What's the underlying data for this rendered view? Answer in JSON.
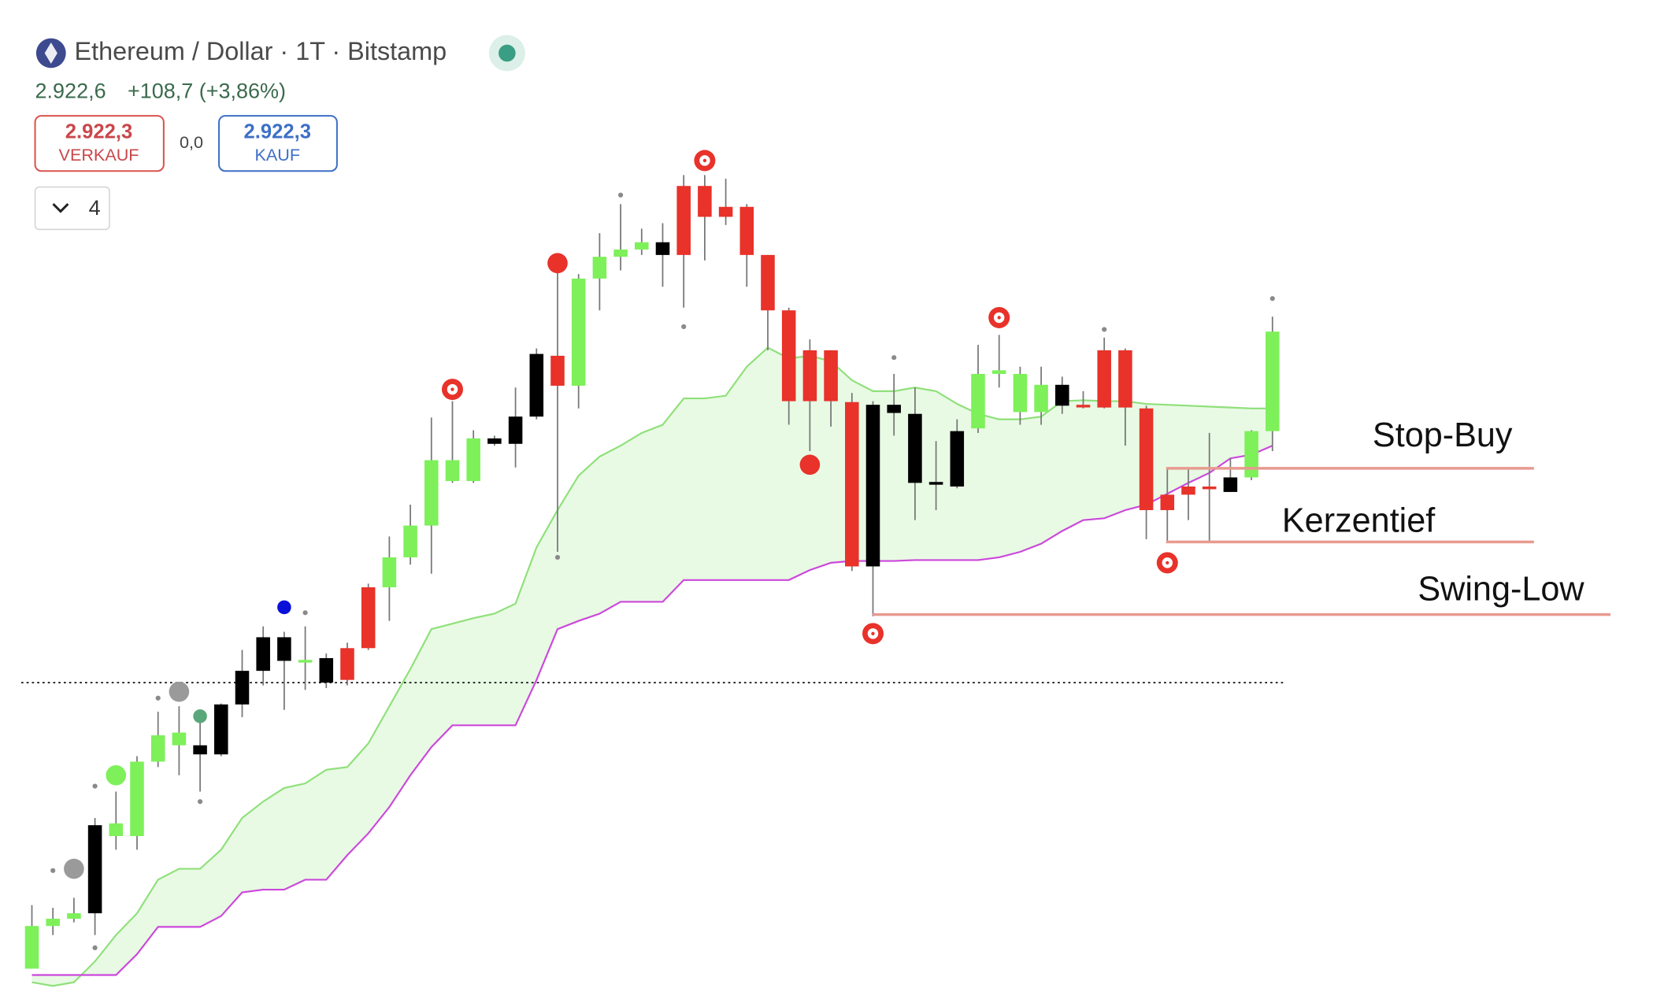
{
  "header": {
    "symbol": "Ethereum / Dollar · 1T · Bitstamp",
    "price": "2.922,6",
    "change": "+108,7 (+3,86%)",
    "sell_price": "2.922,3",
    "sell_label": "VERKAUF",
    "spread": "0,0",
    "buy_price": "2.922,3",
    "buy_label": "KAUF",
    "indicator_count": 4
  },
  "chart_data": {
    "type": "candlestick",
    "ylim": [
      2188,
      3124
    ],
    "open": [
      2221,
      2268,
      2276,
      2282,
      2367,
      2367,
      2449,
      2467,
      2467,
      2457,
      2512,
      2549,
      2586,
      2559,
      2563,
      2574,
      2641,
      2641,
      2674,
      2709,
      2758,
      2758,
      2799,
      2799,
      2829,
      2896,
      2863,
      2981,
      3005,
      3013,
      3021,
      3083,
      3083,
      3060,
      3060,
      3007,
      2946,
      2902,
      2902,
      2845,
      2842,
      2842,
      2832,
      2757,
      2752,
      2816,
      2876,
      2834,
      2834,
      2864,
      2842,
      2902,
      2902,
      2838,
      2743,
      2752,
      2752,
      2746,
      2762,
      2813
    ],
    "high": [
      2291,
      2288,
      2299,
      2387,
      2416,
      2455,
      2504,
      2510,
      2492,
      2513,
      2572,
      2598,
      2592,
      2598,
      2568,
      2580,
      2645,
      2697,
      2732,
      2828,
      2846,
      2814,
      2808,
      2861,
      2904,
      2990,
      2986,
      3031,
      3063,
      3036,
      3042,
      3095,
      3095,
      3091,
      3063,
      3007,
      2949,
      2914,
      2902,
      2855,
      2846,
      2876,
      2861,
      2802,
      2826,
      2908,
      2919,
      2884,
      2884,
      2873,
      2857,
      2916,
      2904,
      2841,
      2773,
      2773,
      2811,
      2783,
      2814,
      2939
    ],
    "low": [
      2221,
      2258,
      2272,
      2258,
      2352,
      2352,
      2443,
      2434,
      2416,
      2455,
      2498,
      2533,
      2506,
      2528,
      2530,
      2533,
      2572,
      2604,
      2666,
      2656,
      2756,
      2756,
      2797,
      2773,
      2826,
      2680,
      2838,
      2946,
      2990,
      3007,
      2972,
      2949,
      3001,
      3040,
      2972,
      2902,
      2820,
      2791,
      2818,
      2659,
      2609,
      2808,
      2715,
      2726,
      2750,
      2811,
      2861,
      2820,
      2820,
      2832,
      2838,
      2838,
      2797,
      2694,
      2691,
      2715,
      2691,
      2746,
      2759,
      2791
    ],
    "close": [
      2268,
      2276,
      2282,
      2379,
      2381,
      2449,
      2478,
      2481,
      2457,
      2512,
      2549,
      2586,
      2560,
      2561,
      2536,
      2539,
      2574,
      2674,
      2709,
      2781,
      2781,
      2805,
      2805,
      2829,
      2898,
      2863,
      2981,
      3005,
      3013,
      3021,
      3007,
      3007,
      3049,
      3049,
      3007,
      2946,
      2846,
      2846,
      2846,
      2664,
      2664,
      2833,
      2756,
      2754,
      2813,
      2876,
      2880,
      2876,
      2864,
      2841,
      2840,
      2839,
      2839,
      2726,
      2726,
      2743,
      2749,
      2762,
      2813,
      2922.6
    ],
    "colors": [
      "#7ef05a",
      "#7ef05a",
      "#7ef05a",
      "#000000",
      "#7ef05a",
      "#7ef05a",
      "#7ef05a",
      "#7ef05a",
      "#000000",
      "#000000",
      "#000000",
      "#000000",
      "#000000",
      "#7ef05a",
      "#000000",
      "#e8322a",
      "#e8322a",
      "#7ef05a",
      "#7ef05a",
      "#7ef05a",
      "#7ef05a",
      "#7ef05a",
      "#000000",
      "#000000",
      "#000000",
      "#e8322a",
      "#7ef05a",
      "#7ef05a",
      "#7ef05a",
      "#7ef05a",
      "#000000",
      "#e8322a",
      "#e8322a",
      "#e8322a",
      "#e8322a",
      "#e8322a",
      "#e8322a",
      "#e8322a",
      "#e8322a",
      "#e8322a",
      "#000000",
      "#000000",
      "#000000",
      "#000000",
      "#000000",
      "#7ef05a",
      "#7ef05a",
      "#7ef05a",
      "#7ef05a",
      "#000000",
      "#e8322a",
      "#e8322a",
      "#e8322a",
      "#e8322a",
      "#e8322a",
      "#e8322a",
      "#e8322a",
      "#000000",
      "#7ef05a",
      "#7ef05a"
    ],
    "cloud": {
      "fill": "#e6f9e1",
      "span_a": {
        "color": "#8fe07a",
        "values": [
          2206,
          2202,
          2206,
          2229,
          2258,
          2282,
          2319,
          2331,
          2331,
          2352,
          2387,
          2405,
          2420,
          2425,
          2440,
          2443,
          2469,
          2510,
          2551,
          2595,
          2601,
          2607,
          2612,
          2623,
          2685,
          2726,
          2764,
          2785,
          2797,
          2811,
          2820,
          2849,
          2849,
          2852,
          2884,
          2905,
          2893,
          2896,
          2890,
          2869,
          2857,
          2857,
          2861,
          2857,
          2843,
          2832,
          2826,
          2826,
          2829,
          2846,
          2847,
          2846,
          2846,
          2843,
          2842,
          2841,
          2840,
          2839,
          2838,
          2838
        ]
      },
      "span_b": {
        "color": "#cc47dc",
        "values": [
          2214,
          2214,
          2214,
          2214,
          2214,
          2237,
          2267,
          2267,
          2267,
          2279,
          2305,
          2308,
          2308,
          2319,
          2319,
          2346,
          2370,
          2399,
          2434,
          2465,
          2489,
          2489,
          2489,
          2489,
          2539,
          2595,
          2604,
          2612,
          2625,
          2625,
          2625,
          2649,
          2649,
          2649,
          2649,
          2649,
          2649,
          2660,
          2668,
          2670,
          2670,
          2670,
          2671,
          2671,
          2671,
          2671,
          2674,
          2680,
          2689,
          2703,
          2715,
          2717,
          2726,
          2732,
          2744,
          2756,
          2767,
          2783,
          2787,
          2797
        ]
      }
    },
    "markers": [
      {
        "index": 25,
        "value": 2998,
        "kind": "dot",
        "color": "#e8322a"
      },
      {
        "index": 20,
        "value": 2859,
        "kind": "ring",
        "color": "#e8322a"
      },
      {
        "index": 32,
        "value": 3111,
        "kind": "ring",
        "color": "#e8322a"
      },
      {
        "index": 37,
        "value": 2776,
        "kind": "dot",
        "color": "#e8322a"
      },
      {
        "index": 46,
        "value": 2938,
        "kind": "ring",
        "color": "#e8322a"
      },
      {
        "index": 40,
        "value": 2590,
        "kind": "ring",
        "color": "#e8322a"
      },
      {
        "index": 54,
        "value": 2668,
        "kind": "ring",
        "color": "#e8322a"
      },
      {
        "index": 12,
        "value": 2619,
        "kind": "small-dot",
        "color": "#0a10d8"
      },
      {
        "index": 7,
        "value": 2526,
        "kind": "dot",
        "color": "#9a9a9a"
      },
      {
        "index": 8,
        "value": 2499,
        "kind": "small-dot",
        "color": "#5aa77a"
      },
      {
        "index": 4,
        "value": 2434,
        "kind": "dot",
        "color": "#7ef05a"
      },
      {
        "index": 2,
        "value": 2331,
        "kind": "dot",
        "color": "#9a9a9a"
      },
      {
        "index": 1,
        "value": 2329,
        "kind": "tiny",
        "color": "#8a8a8a"
      },
      {
        "index": 3,
        "value": 2422,
        "kind": "tiny",
        "color": "#8a8a8a"
      },
      {
        "index": 3,
        "value": 2244,
        "kind": "tiny",
        "color": "#8a8a8a"
      },
      {
        "index": 6,
        "value": 2519,
        "kind": "tiny",
        "color": "#8a8a8a"
      },
      {
        "index": 8,
        "value": 2405,
        "kind": "tiny",
        "color": "#8a8a8a"
      },
      {
        "index": 13,
        "value": 2613,
        "kind": "tiny",
        "color": "#8a8a8a"
      },
      {
        "index": 25,
        "value": 2674,
        "kind": "tiny",
        "color": "#8a8a8a"
      },
      {
        "index": 28,
        "value": 3073,
        "kind": "tiny",
        "color": "#8a8a8a"
      },
      {
        "index": 31,
        "value": 2928,
        "kind": "tiny",
        "color": "#8a8a8a"
      },
      {
        "index": 41,
        "value": 2894,
        "kind": "tiny",
        "color": "#8a8a8a"
      },
      {
        "index": 51,
        "value": 2925,
        "kind": "tiny",
        "color": "#8a8a8a"
      },
      {
        "index": 59,
        "value": 2959,
        "kind": "tiny",
        "color": "#8a8a8a"
      }
    ],
    "reference_line": {
      "value": 2536
    },
    "levels": [
      {
        "label": "Stop-Buy",
        "value": 2772,
        "color": "#e89a8f"
      },
      {
        "label": "Kerzentief",
        "value": 2691,
        "color": "#e89a8f"
      },
      {
        "label": "Swing-Low",
        "value": 2611,
        "color": "#e89a8f"
      }
    ]
  }
}
